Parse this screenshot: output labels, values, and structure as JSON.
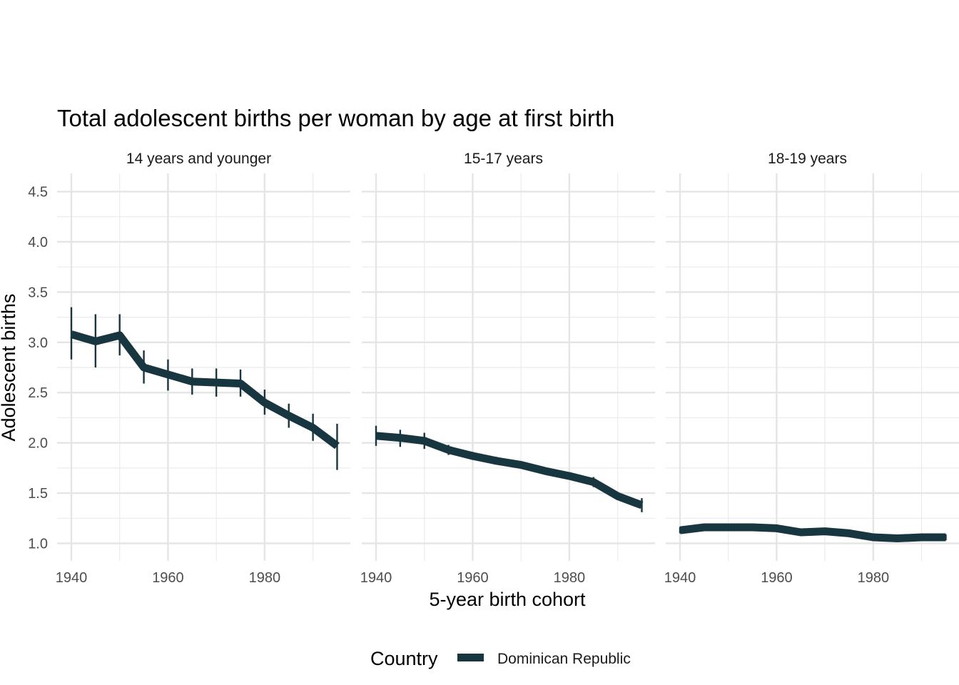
{
  "chart_data": {
    "type": "line",
    "title": "Total adolescent births per woman by age at first birth",
    "xlabel": "5-year birth cohort",
    "ylabel": "Adolescent births",
    "xlim": [
      1940,
      1995
    ],
    "ylim": [
      1.0,
      4.5
    ],
    "x_ticks": [
      1940,
      1960,
      1980
    ],
    "y_ticks": [
      1.0,
      1.5,
      2.0,
      2.5,
      3.0,
      3.5,
      4.0,
      4.5
    ],
    "y_tick_labels": [
      "1.0",
      "1.5",
      "2.0",
      "2.5",
      "3.0",
      "3.5",
      "4.0",
      "4.5"
    ],
    "grid": true,
    "legend": {
      "title": "Country",
      "position": "bottom"
    },
    "color": "#17363f",
    "panels": [
      {
        "name": "14 years and younger",
        "x": [
          1940,
          1945,
          1950,
          1955,
          1960,
          1965,
          1970,
          1975,
          1980,
          1985,
          1990,
          1995
        ],
        "values": [
          3.08,
          3.01,
          3.07,
          2.75,
          2.68,
          2.61,
          2.6,
          2.59,
          2.4,
          2.27,
          2.15,
          1.97
        ],
        "lower": [
          2.83,
          2.75,
          2.87,
          2.59,
          2.52,
          2.48,
          2.46,
          2.46,
          2.28,
          2.15,
          2.02,
          1.73
        ],
        "upper": [
          3.35,
          3.28,
          3.28,
          2.92,
          2.83,
          2.74,
          2.74,
          2.73,
          2.53,
          2.39,
          2.29,
          2.19
        ]
      },
      {
        "name": "15-17 years",
        "x": [
          1940,
          1945,
          1950,
          1955,
          1960,
          1965,
          1970,
          1975,
          1980,
          1985,
          1990,
          1995
        ],
        "values": [
          2.07,
          2.05,
          2.02,
          1.93,
          1.87,
          1.82,
          1.78,
          1.72,
          1.67,
          1.61,
          1.47,
          1.38
        ],
        "lower": [
          1.97,
          1.96,
          1.94,
          1.88,
          1.83,
          1.79,
          1.75,
          1.7,
          1.64,
          1.56,
          1.45,
          1.31
        ],
        "upper": [
          2.17,
          2.13,
          2.1,
          1.98,
          1.91,
          1.86,
          1.81,
          1.75,
          1.7,
          1.66,
          1.5,
          1.45
        ]
      },
      {
        "name": "18-19 years",
        "x": [
          1940,
          1945,
          1950,
          1955,
          1960,
          1965,
          1970,
          1975,
          1980,
          1985,
          1990,
          1995
        ],
        "values": [
          1.13,
          1.16,
          1.16,
          1.16,
          1.15,
          1.11,
          1.12,
          1.1,
          1.06,
          1.05,
          1.06,
          1.06
        ],
        "lower": [
          1.1,
          1.14,
          1.15,
          1.15,
          1.14,
          1.1,
          1.11,
          1.09,
          1.05,
          1.04,
          1.05,
          1.03
        ],
        "upper": [
          1.16,
          1.18,
          1.17,
          1.17,
          1.16,
          1.12,
          1.13,
          1.11,
          1.07,
          1.06,
          1.07,
          1.09
        ]
      }
    ],
    "series": [
      {
        "name": "Dominican Republic",
        "color": "#17363f"
      }
    ]
  }
}
